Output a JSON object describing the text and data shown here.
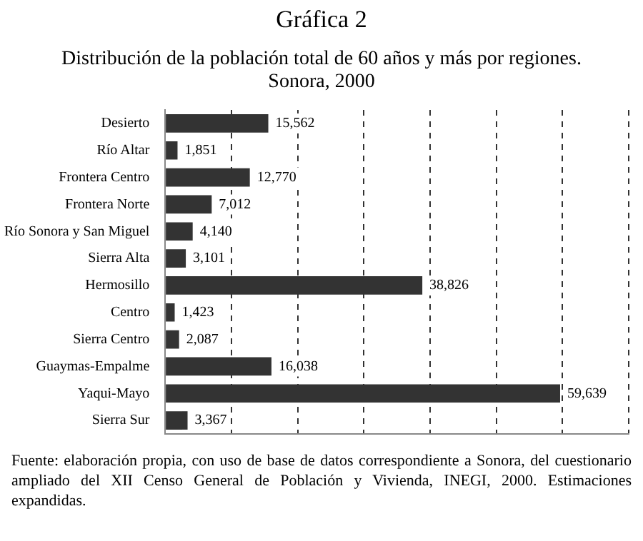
{
  "chart_data": {
    "type": "bar",
    "orientation": "horizontal",
    "title": "Gráfica 2",
    "subtitle": "Distribución de la población total de 60 años y más por regiones. Sonora, 2000",
    "categories": [
      "Desierto",
      "Río Altar",
      "Frontera Centro",
      "Frontera Norte",
      "Río Sonora y San Miguel",
      "Sierra Alta",
      "Hermosillo",
      "Centro",
      "Sierra Centro",
      "Guaymas-Empalme",
      "Yaqui-Mayo",
      "Sierra Sur"
    ],
    "values": [
      15562,
      1851,
      12770,
      7012,
      4140,
      3101,
      38826,
      1423,
      2087,
      16038,
      59639,
      3367
    ],
    "value_labels": [
      "15,562",
      "1,851",
      "12,770",
      "7,012",
      "4,140",
      "3,101",
      "38,826",
      "1,423",
      "2,087",
      "16,038",
      "59,639",
      "3,367"
    ],
    "color": "#333333",
    "tick_labels": "y",
    "grid": "x",
    "line_style": "dashed",
    "legend": false,
    "annotations": [
      "Fuente: elaboración propia, con uso de base de datos correspondiente a Sonora, del cuestionario ampliado del XII Censo General de Población y Vivienda, INEGI, 2000. Estimaciones expandidas."
    ]
  }
}
